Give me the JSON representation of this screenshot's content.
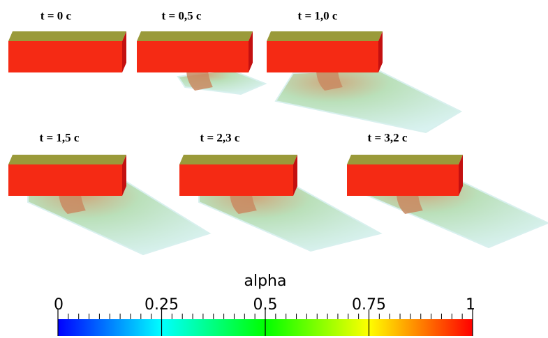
{
  "panels": [
    {
      "label": "t = 0 c"
    },
    {
      "label": "t = 0,5 c"
    },
    {
      "label": "t = 1,0 c"
    },
    {
      "label": "t = 1,5 c"
    },
    {
      "label": "t = 2,3 c"
    },
    {
      "label": "t = 3,2 c"
    }
  ],
  "colorbar": {
    "title": "alpha",
    "range": [
      0,
      1
    ],
    "ticks": [
      0,
      0.25,
      0.5,
      0.75,
      1
    ],
    "colormap": [
      "#0000ff",
      "#00ffff",
      "#00ff00",
      "#ffff00",
      "#ff0000"
    ]
  }
}
